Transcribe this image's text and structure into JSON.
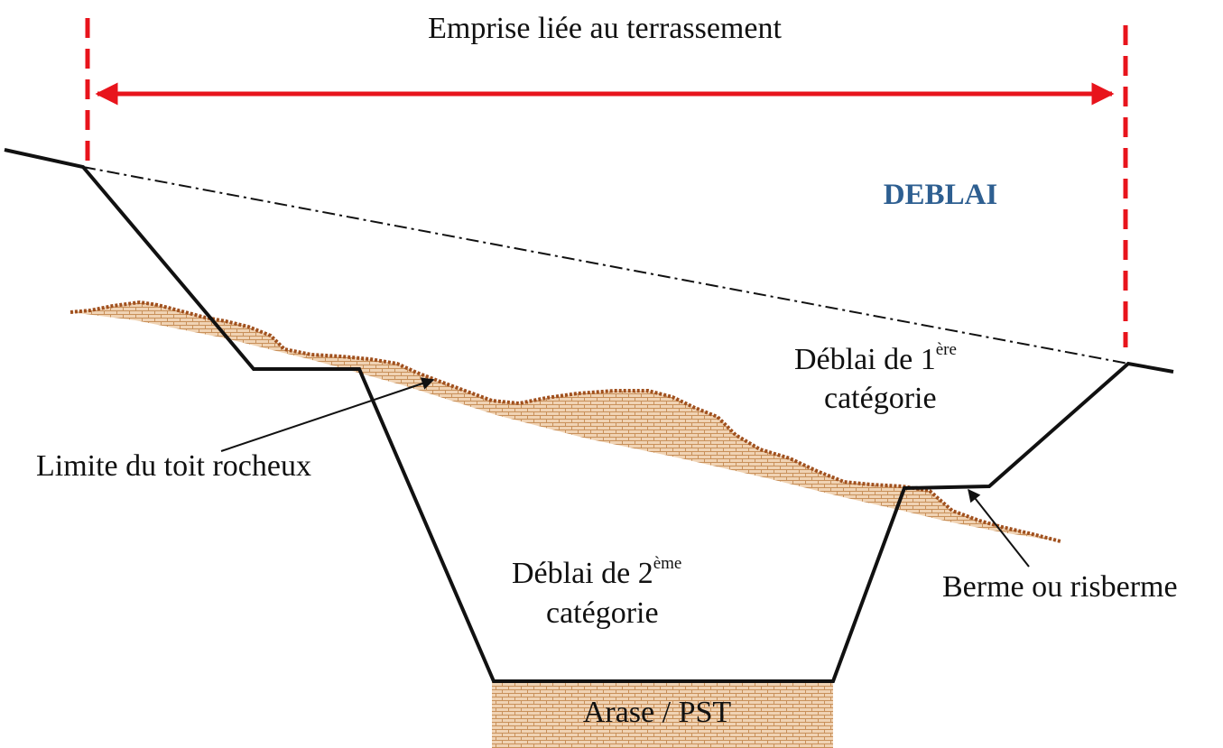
{
  "labels": {
    "emprise": "Emprise liée au terrassement",
    "deblai": "DEBLAI",
    "deblai1_line1": "Déblai de 1",
    "deblai1_sup": "ère",
    "deblai1_line2": "catégorie",
    "deblai2_line1": "Déblai de 2",
    "deblai2_sup": "ème",
    "deblai2_line2": "catégorie",
    "limite": "Limite du toit rocheux",
    "berme": "Berme ou risberme",
    "arase": "Arase / PST"
  },
  "colors": {
    "emprise_red": "#e8141c",
    "deblai_blue": "#2e5f91",
    "rock_brown": "#a0501e",
    "hatch_fill": "#f0d3b4",
    "hatch_lines": "#c8905a",
    "profile_black": "#111111"
  }
}
